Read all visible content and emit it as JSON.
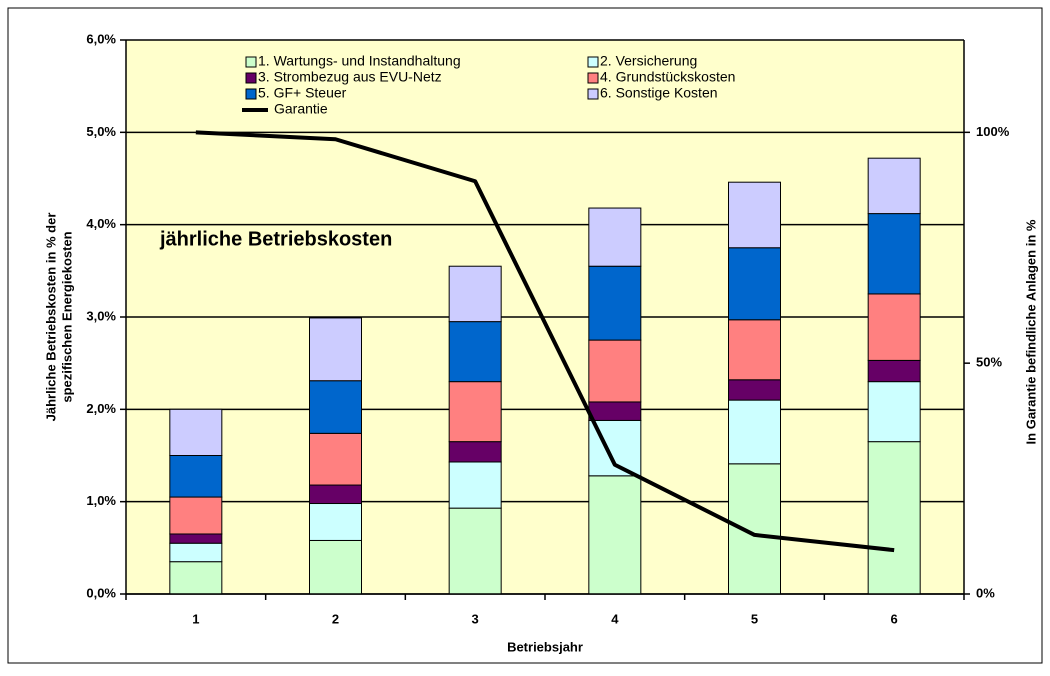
{
  "chart_data": {
    "type": "bar",
    "stacked": true,
    "annotation": "jährliche Betriebskosten",
    "xlabel": "Betriebsjahr",
    "ylabel": [
      "Jährliche Betriebskosten in % der",
      "spezifischen Energiekosten"
    ],
    "y2label": "In Garantie befindliche Anlagen in %",
    "categories": [
      "1",
      "2",
      "3",
      "4",
      "5",
      "6"
    ],
    "ylim": [
      0,
      6
    ],
    "yticks": [
      {
        "value": 0,
        "label": "0,0%"
      },
      {
        "value": 1,
        "label": "1,0%"
      },
      {
        "value": 2,
        "label": "2,0%"
      },
      {
        "value": 3,
        "label": "3,0%"
      },
      {
        "value": 4,
        "label": "4,0%"
      },
      {
        "value": 5,
        "label": "5,0%"
      },
      {
        "value": 6,
        "label": "6,0%"
      }
    ],
    "y2lim": [
      0,
      120
    ],
    "y2ticks": [
      {
        "value": 0,
        "label": "0%"
      },
      {
        "value": 50,
        "label": "50%"
      },
      {
        "value": 100,
        "label": "100%"
      }
    ],
    "grid": true,
    "background": "#ffffcc",
    "series": [
      {
        "name": "1. Wartungs- und Instandhaltung",
        "color": "#ccffcc",
        "values": [
          0.35,
          0.58,
          0.93,
          1.28,
          1.41,
          1.65
        ]
      },
      {
        "name": "2. Versicherung",
        "color": "#ccffff",
        "values": [
          0.2,
          0.4,
          0.5,
          0.6,
          0.69,
          0.65
        ]
      },
      {
        "name": "3. Strombezug aus EVU-Netz",
        "color": "#660066",
        "values": [
          0.1,
          0.2,
          0.22,
          0.2,
          0.22,
          0.23
        ]
      },
      {
        "name": "4. Grundstückskosten",
        "color": "#ff8080",
        "values": [
          0.4,
          0.56,
          0.65,
          0.67,
          0.65,
          0.72
        ]
      },
      {
        "name": "5. GF+ Steuer",
        "color": "#0066cc",
        "values": [
          0.45,
          0.57,
          0.65,
          0.8,
          0.78,
          0.87
        ]
      },
      {
        "name": "6. Sonstige Kosten",
        "color": "#ccccff",
        "values": [
          0.5,
          0.68,
          0.6,
          0.63,
          0.71,
          0.6
        ]
      },
      {
        "name": "Garantie",
        "color": "#000000",
        "type": "line",
        "axis": "y2",
        "values": [
          100,
          98.5,
          89.4,
          28,
          12.8,
          9.5
        ]
      }
    ]
  }
}
